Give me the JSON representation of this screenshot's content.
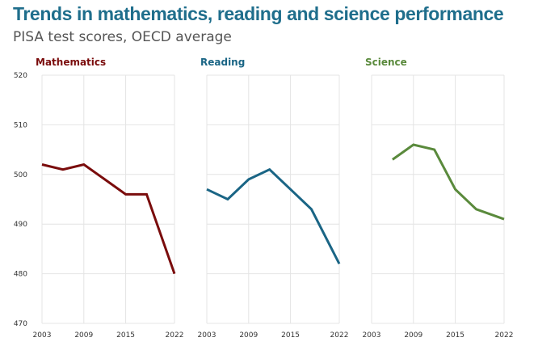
{
  "title": "Trends in mathematics, reading and science performance",
  "subtitle": "PISA test scores, OECD average",
  "chart_data": {
    "type": "line",
    "ylim": [
      470,
      520
    ],
    "y_ticks": [
      470,
      480,
      490,
      500,
      510,
      520
    ],
    "x_ticks": [
      2003,
      2009,
      2015,
      2022
    ],
    "grid": true,
    "panels": [
      {
        "name": "Mathematics",
        "color": "#7a0c0c",
        "x": [
          2003,
          2006,
          2009,
          2012,
          2015,
          2018,
          2022
        ],
        "values": [
          502,
          501,
          502,
          499,
          496,
          496,
          480
        ]
      },
      {
        "name": "Reading",
        "color": "#1a6585",
        "x": [
          2003,
          2006,
          2009,
          2012,
          2015,
          2018,
          2022
        ],
        "values": [
          497,
          495,
          499,
          501,
          497,
          493,
          482
        ]
      },
      {
        "name": "Science",
        "color": "#5a8a3c",
        "x": [
          2006,
          2009,
          2012,
          2015,
          2018,
          2022
        ],
        "values": [
          503,
          506,
          505,
          497,
          493,
          491
        ]
      }
    ]
  }
}
